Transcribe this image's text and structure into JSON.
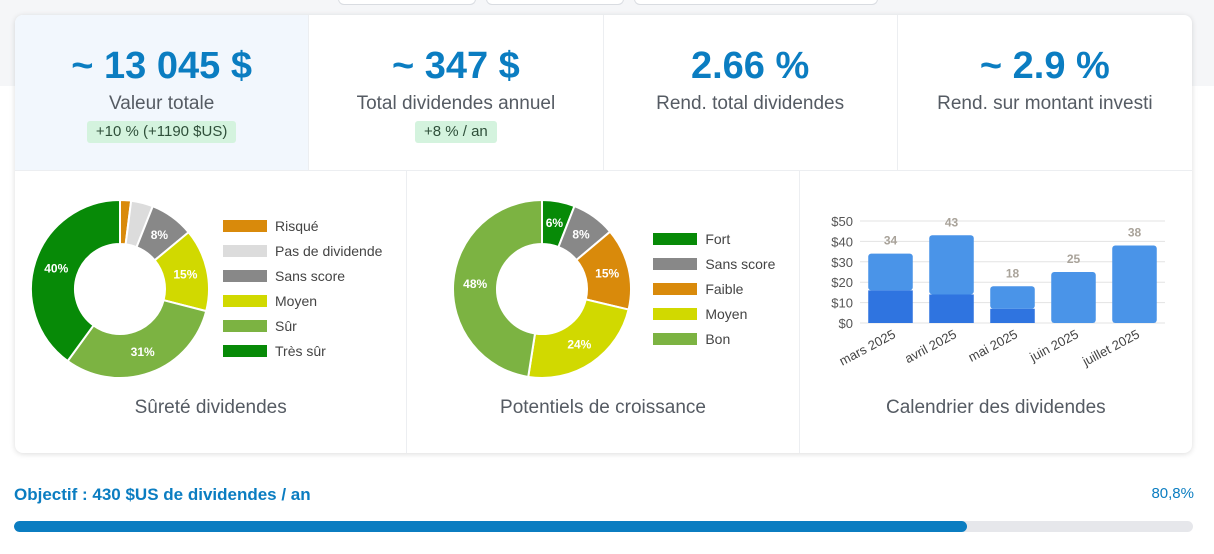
{
  "kpis": [
    {
      "value": "~ 13 045 $",
      "label": "Valeur totale",
      "badge": "+10 % (+1190 $US)"
    },
    {
      "value": "~ 347 $",
      "label": "Total dividendes annuel",
      "badge": "+8 % / an"
    },
    {
      "value": "2.66 %",
      "label": "Rend. total dividendes",
      "badge": ""
    },
    {
      "value": "~ 2.9 %",
      "label": "Rend. sur montant investi",
      "badge": ""
    }
  ],
  "colors": {
    "accent": "#0b7dc1",
    "badge_bg": "#d4f3de",
    "risque": "#d98a0b",
    "pas_de_dividende": "#dcdcdc",
    "sans_score": "#888888",
    "moyen": "#d1d900",
    "sur": "#7cb342",
    "tres_sur": "#078a07",
    "bar_light": "#4a94e8",
    "bar_dark": "#2f74e0"
  },
  "chart_data": [
    {
      "type": "pie",
      "title": "Sûreté dividendes",
      "slices": [
        {
          "name": "Risqué",
          "value": 2,
          "label": "",
          "color": "#d98a0b"
        },
        {
          "name": "Pas de dividende",
          "value": 4,
          "label": "",
          "color": "#dcdcdc"
        },
        {
          "name": "Sans score",
          "value": 8,
          "label": "8%",
          "color": "#888888"
        },
        {
          "name": "Moyen",
          "value": 15,
          "label": "15%",
          "color": "#d1d900"
        },
        {
          "name": "Sûr",
          "value": 31,
          "label": "31%",
          "color": "#7cb342"
        },
        {
          "name": "Très sûr",
          "value": 40,
          "label": "40%",
          "color": "#078a07"
        }
      ],
      "legend": [
        "Risqué",
        "Pas de dividende",
        "Sans score",
        "Moyen",
        "Sûr",
        "Très sûr"
      ],
      "legend_position": "right"
    },
    {
      "type": "pie",
      "title": "Potentiels de croissance",
      "slices": [
        {
          "name": "Fort",
          "value": 6,
          "label": "6%",
          "color": "#078a07"
        },
        {
          "name": "Sans score",
          "value": 8,
          "label": "8%",
          "color": "#888888"
        },
        {
          "name": "Faible",
          "value": 15,
          "label": "15%",
          "color": "#d98a0b"
        },
        {
          "name": "Moyen",
          "value": 24,
          "label": "24%",
          "color": "#d1d900"
        },
        {
          "name": "Bon",
          "value": 48,
          "label": "48%",
          "color": "#7cb342"
        }
      ],
      "legend": [
        "Fort",
        "Sans score",
        "Faible",
        "Moyen",
        "Bon"
      ],
      "legend_position": "right"
    },
    {
      "type": "bar",
      "title": "Calendrier des dividendes",
      "categories": [
        "mars 2025",
        "avril 2025",
        "mai 2025",
        "juin 2025",
        "juillet 2025"
      ],
      "series": [
        {
          "values": [
            16,
            14,
            7,
            0,
            0
          ],
          "color": "#2f74e0"
        },
        {
          "values": [
            18,
            29,
            11,
            25,
            38
          ],
          "color": "#4a94e8"
        }
      ],
      "totals": [
        "34",
        "43",
        "18",
        "25",
        "38"
      ],
      "yticks": [
        "$0",
        "$10",
        "$20",
        "$30",
        "$40",
        "$50"
      ],
      "ylim": [
        0,
        50
      ],
      "stacked": true,
      "grid": true
    }
  ],
  "goal": {
    "title": "Objectif : 430 $US de dividendes / an",
    "percent_label": "80,8%",
    "progress": 0.808
  }
}
